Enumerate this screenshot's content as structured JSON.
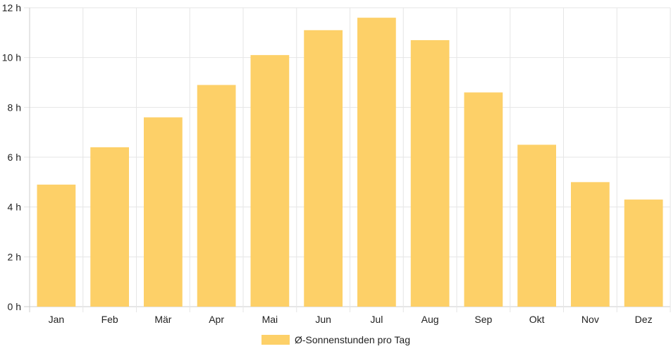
{
  "chart_data": {
    "type": "bar",
    "categories": [
      "Jan",
      "Feb",
      "Mär",
      "Apr",
      "Mai",
      "Jun",
      "Jul",
      "Aug",
      "Sep",
      "Okt",
      "Nov",
      "Dez"
    ],
    "series": [
      {
        "name": "Ø-Sonnenstunden pro Tag",
        "values": [
          4.9,
          6.4,
          7.6,
          8.9,
          10.1,
          11.1,
          11.6,
          10.7,
          8.6,
          6.5,
          5.0,
          4.3
        ],
        "color": "#fdd068"
      }
    ],
    "yticks": [
      "0 h",
      "2 h",
      "4 h",
      "6 h",
      "8 h",
      "10 h",
      "12 h"
    ],
    "ylim": [
      0,
      12
    ],
    "grid": true,
    "legend_position": "bottom",
    "colors": {
      "grid": "#e6e6e6",
      "axis": "#cccccc",
      "text": "#222222"
    }
  }
}
